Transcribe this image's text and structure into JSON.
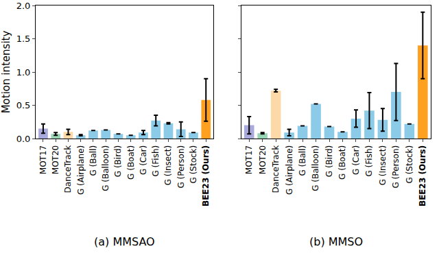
{
  "chart_data": [
    {
      "type": "bar",
      "title": "(a) MMSAO",
      "ylabel": "Motion intensity",
      "categories": [
        "MOT17",
        "MOT20",
        "DanceTrack",
        "G (Airplane)",
        "G (Ball)",
        "G (Balloon)",
        "G (Bird)",
        "G (Boat)",
        "G (Car)",
        "G (Fish)",
        "G (Insect)",
        "G (Person)",
        "G (Stock)",
        "BEE23 (Ours)"
      ],
      "values": [
        0.15,
        0.07,
        0.1,
        0.05,
        0.12,
        0.13,
        0.07,
        0.05,
        0.09,
        0.27,
        0.23,
        0.14,
        0.09,
        0.58
      ],
      "errors": [
        0.07,
        0.02,
        0.04,
        0.01,
        0.0,
        0.0,
        0.0,
        0.0,
        0.03,
        0.08,
        0.01,
        0.11,
        0.0,
        0.32
      ],
      "colors": [
        "#a9a9dc",
        "#99d4b4",
        "#fcd9a6",
        "#8ccbe8",
        "#8ccbe8",
        "#8ccbe8",
        "#8ccbe8",
        "#8ccbe8",
        "#8ccbe8",
        "#8ccbe8",
        "#8ccbe8",
        "#8ccbe8",
        "#8ccbe8",
        "#ffa020"
      ],
      "ylim": [
        0,
        2
      ],
      "yticks": [
        {
          "value": 0,
          "label": "0.0"
        },
        {
          "value": 0.5,
          "label": "0.5"
        },
        {
          "value": 1,
          "label": "1.0"
        },
        {
          "value": 1.5,
          "label": "1.5"
        },
        {
          "value": 2,
          "label": "2.0"
        }
      ],
      "grid": false
    },
    {
      "type": "bar",
      "title": "(b) MMSO",
      "categories": [
        "MOT17",
        "MOT20",
        "DanceTrack",
        "G (Airplane)",
        "G (Ball)",
        "G (Balloon)",
        "G (Bird)",
        "G (Boat)",
        "G (Car)",
        "G (Fish)",
        "G (Insect)",
        "G (Person)",
        "G (Stock)",
        "BEE23 (Ours)"
      ],
      "values": [
        0.2,
        0.08,
        0.72,
        0.09,
        0.19,
        0.52,
        0.18,
        0.1,
        0.3,
        0.42,
        0.28,
        0.7,
        0.22,
        1.4
      ],
      "errors": [
        0.13,
        0.01,
        0.02,
        0.05,
        0.0,
        0.0,
        0.0,
        0.0,
        0.13,
        0.27,
        0.17,
        0.43,
        0.0,
        0.5
      ],
      "colors": [
        "#a9a9dc",
        "#99d4b4",
        "#fcd9a6",
        "#8ccbe8",
        "#8ccbe8",
        "#8ccbe8",
        "#8ccbe8",
        "#8ccbe8",
        "#8ccbe8",
        "#8ccbe8",
        "#8ccbe8",
        "#8ccbe8",
        "#8ccbe8",
        "#ffa020"
      ],
      "ylim": [
        0,
        2
      ],
      "yticks": [
        {
          "value": 0,
          "label": "0.0"
        },
        {
          "value": 0.5,
          "label": "0.5"
        },
        {
          "value": 1,
          "label": "1.0"
        },
        {
          "value": 1.5,
          "label": "1.5"
        },
        {
          "value": 2,
          "label": "2.0"
        }
      ],
      "tick_labels": "x",
      "grid": false
    }
  ]
}
